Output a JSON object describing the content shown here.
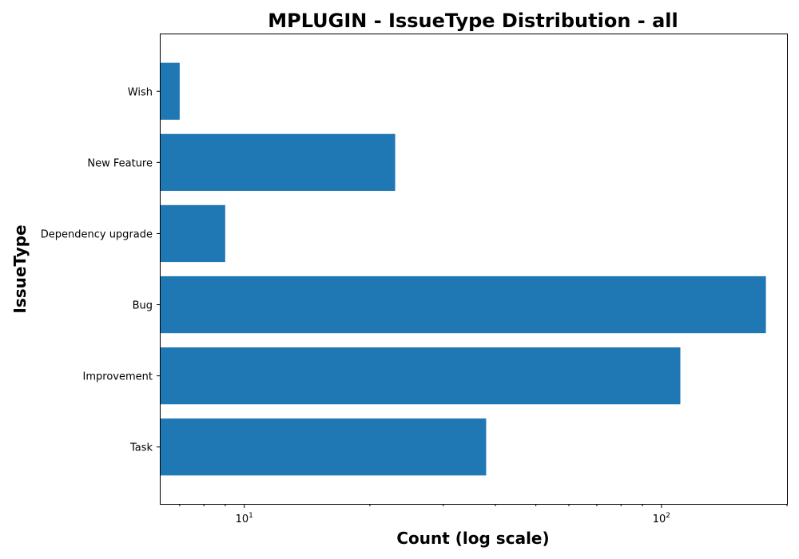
{
  "chart_data": {
    "type": "bar",
    "orientation": "horizontal",
    "title": "MPLUGIN - IssueType Distribution - all",
    "xlabel": "Count (log scale)",
    "ylabel": "IssueType",
    "x_scale": "log",
    "xlim": [
      6.3,
      200
    ],
    "grid": false,
    "categories": [
      "Task",
      "Improvement",
      "Bug",
      "Dependency upgrade",
      "New Feature",
      "Wish"
    ],
    "values": [
      38,
      111,
      178,
      9,
      23,
      7
    ],
    "color": "#1f77b4",
    "x_major_ticks": [
      {
        "value": 10,
        "base": "10",
        "exp": "1"
      },
      {
        "value": 100,
        "base": "10",
        "exp": "2"
      }
    ],
    "x_minor_ticks": [
      7,
      8,
      9,
      20,
      30,
      40,
      50,
      60,
      70,
      80,
      90,
      200
    ]
  }
}
